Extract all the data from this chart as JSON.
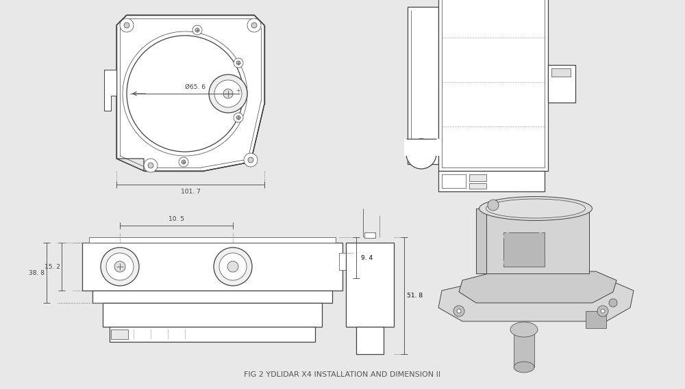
{
  "background_color": "#e8e8e8",
  "panel_color": "#ffffff",
  "line_color": "#404040",
  "dim_color": "#404040",
  "caption": "FIG 2 YDLIDAR X4 INSTALLATION AND DIMENSION II",
  "caption_fontsize": 8,
  "caption_color": "#555555",
  "dims": {
    "top_width": "101. 7",
    "diameter": "Ø65. 6",
    "top_left_h": "15. 2",
    "side_h": "10. 5",
    "side_w": "38. 8",
    "right_h": "9. 4",
    "total_h": "51. 8"
  }
}
